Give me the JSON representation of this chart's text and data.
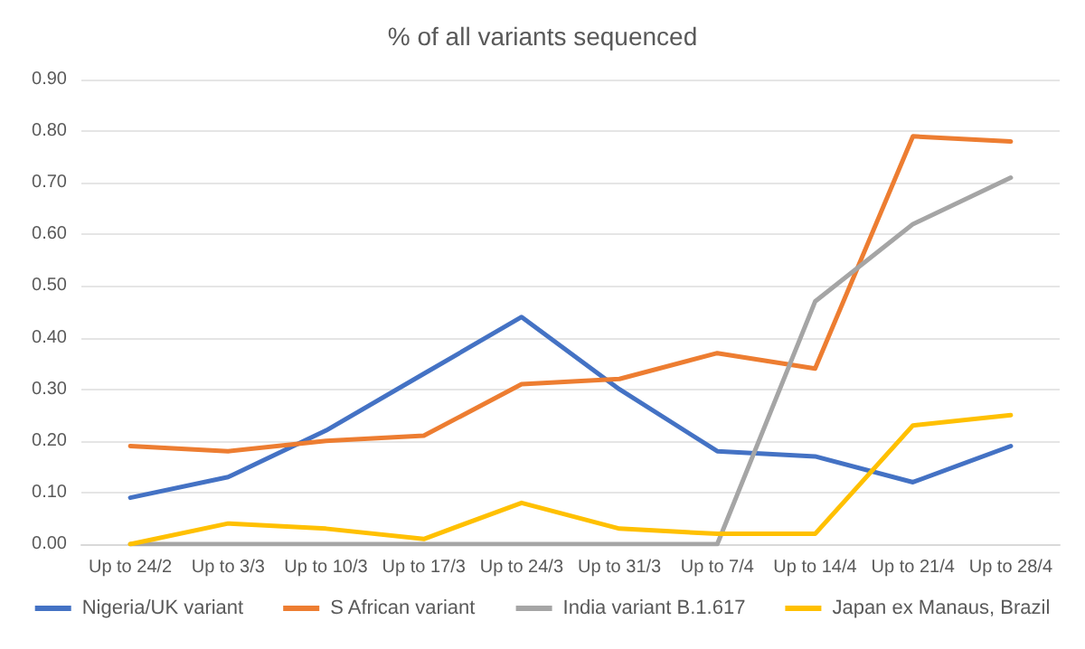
{
  "chart_data": {
    "type": "line",
    "title": "% of all variants sequenced",
    "categories": [
      "Up to 24/2",
      "Up to 3/3",
      "Up to 10/3",
      "Up to 17/3",
      "Up to 24/3",
      "Up to 31/3",
      "Up to 7/4",
      "Up to 14/4",
      "Up to 21/4",
      "Up to 28/4"
    ],
    "series": [
      {
        "name": "Nigeria/UK variant",
        "color": "#4472c4",
        "values": [
          0.09,
          0.13,
          0.22,
          0.33,
          0.44,
          0.3,
          0.18,
          0.17,
          0.12,
          0.19
        ]
      },
      {
        "name": "S African variant",
        "color": "#ed7d31",
        "values": [
          0.19,
          0.18,
          0.2,
          0.21,
          0.31,
          0.32,
          0.37,
          0.34,
          0.79,
          0.78
        ]
      },
      {
        "name": "India variant B.1.617",
        "color": "#a5a5a5",
        "values": [
          0,
          0,
          0,
          0,
          0,
          0,
          0,
          0.47,
          0.62,
          0.71
        ]
      },
      {
        "name": "Japan ex Manaus, Brazil",
        "color": "#ffc000",
        "values": [
          0,
          0.04,
          0.03,
          0.01,
          0.08,
          0.03,
          0.02,
          0.02,
          0.23,
          0.25
        ]
      }
    ],
    "ylim": [
      0,
      0.9
    ],
    "yticks": [
      {
        "value": 0,
        "label": "0.00"
      },
      {
        "value": 0.1,
        "label": "0.10"
      },
      {
        "value": 0.2,
        "label": "0.20"
      },
      {
        "value": 0.3,
        "label": "0.30"
      },
      {
        "value": 0.4,
        "label": "0.40"
      },
      {
        "value": 0.5,
        "label": "0.50"
      },
      {
        "value": 0.6,
        "label": "0.60"
      },
      {
        "value": 0.7,
        "label": "0.70"
      },
      {
        "value": 0.8,
        "label": "0.80"
      },
      {
        "value": 0.9,
        "label": "0.90"
      }
    ],
    "grid": "y",
    "legend": "bottom",
    "marker": "none",
    "line_style": "solid"
  }
}
